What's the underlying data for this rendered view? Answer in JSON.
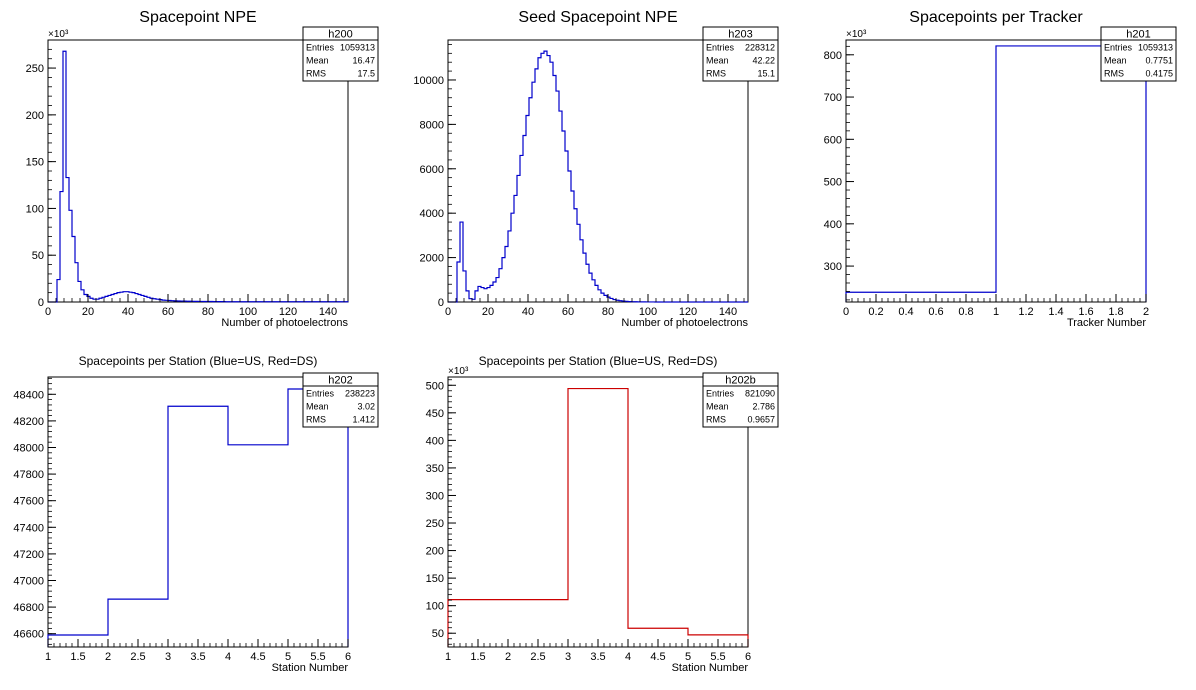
{
  "chart_data": [
    {
      "id": "h200",
      "type": "histogram",
      "title": "Spacepoint NPE",
      "xlabel": "Number of photoelectrons",
      "ylabel": "",
      "exponent_label": "×10³",
      "xlim": [
        0,
        150
      ],
      "ylim": [
        0,
        280
      ],
      "xticks": [
        0,
        20,
        40,
        60,
        80,
        100,
        120,
        140
      ],
      "xtick_labels": [
        "0",
        "20",
        "40",
        "60",
        "80",
        "100",
        "120",
        "140"
      ],
      "yticks": [
        0,
        50,
        100,
        150,
        200,
        250
      ],
      "ytick_labels": [
        "0",
        "50",
        "100",
        "150",
        "200",
        "250"
      ],
      "color": "#0000cc",
      "bins": {
        "x0": 0,
        "width": 1.5,
        "values": [
          0,
          0,
          0,
          24,
          118,
          268,
          133,
          98,
          70,
          42,
          22,
          13,
          8,
          6,
          4,
          3,
          3,
          4,
          5,
          6,
          7,
          8,
          9,
          10,
          10.5,
          11,
          11,
          10.5,
          10,
          9,
          8,
          7,
          6,
          5,
          4,
          3.5,
          3,
          2.5,
          2,
          1.8,
          1.6,
          1.4,
          1.2,
          1.1,
          1,
          0.9,
          0.8,
          0.8,
          0.7,
          0.7,
          0.6,
          0.6,
          0.5,
          0.5,
          0.5,
          0.4,
          0.4,
          0.4,
          0.4,
          0.3,
          0.3,
          0.3,
          0.3,
          0.3,
          0.3,
          0.3,
          0.3,
          0.3,
          0.3,
          0.3,
          0.3,
          0.3,
          0.3,
          0.3,
          0.3,
          0.3,
          0.3,
          0.3,
          0.3,
          0.3,
          0.3,
          0.3,
          0.3,
          0.3,
          0.3,
          0.3,
          0.3,
          0.3,
          0.3,
          0.3,
          0.3,
          0.3,
          0.3,
          0.3,
          0.3,
          0.3,
          0.3,
          0.3,
          0.3,
          0.3
        ]
      },
      "stats": {
        "name": "h200",
        "rows": [
          {
            "label": "Entries",
            "value": "1059313"
          },
          {
            "label": "Mean",
            "value": "16.47"
          },
          {
            "label": "RMS",
            "value": "17.5"
          }
        ]
      }
    },
    {
      "id": "h203",
      "type": "histogram",
      "title": "Seed Spacepoint NPE",
      "xlabel": "Number of photoelectrons",
      "ylabel": "",
      "exponent_label": "",
      "xlim": [
        0,
        150
      ],
      "ylim": [
        0,
        11800
      ],
      "xticks": [
        0,
        20,
        40,
        60,
        80,
        100,
        120,
        140
      ],
      "xtick_labels": [
        "0",
        "20",
        "40",
        "60",
        "80",
        "100",
        "120",
        "140"
      ],
      "yticks": [
        0,
        2000,
        4000,
        6000,
        8000,
        10000
      ],
      "ytick_labels": [
        "0",
        "2000",
        "4000",
        "6000",
        "8000",
        "10000"
      ],
      "color": "#0000cc",
      "bins": {
        "x0": 0,
        "width": 1.5,
        "values": [
          0,
          0,
          0,
          1800,
          3600,
          1400,
          500,
          150,
          120,
          500,
          700,
          650,
          600,
          650,
          750,
          900,
          1100,
          1500,
          2000,
          2500,
          3200,
          4000,
          4800,
          5700,
          6600,
          7500,
          8400,
          9200,
          9900,
          10500,
          11000,
          11200,
          11300,
          11100,
          10800,
          10200,
          9500,
          8600,
          7700,
          6800,
          5900,
          5000,
          4200,
          3500,
          2800,
          2200,
          1700,
          1300,
          1000,
          750,
          550,
          400,
          300,
          220,
          160,
          110,
          80,
          60,
          40,
          30,
          20,
          15,
          10,
          7,
          5,
          4,
          3,
          2,
          2,
          1,
          1,
          1,
          1,
          1,
          1,
          0,
          0,
          0,
          0,
          0,
          0,
          0,
          0,
          0,
          0,
          0,
          0,
          0,
          0,
          0,
          0,
          0,
          0,
          0,
          0,
          0,
          0,
          0,
          0,
          0
        ]
      },
      "stats": {
        "name": "h203",
        "rows": [
          {
            "label": "Entries",
            "value": "228312"
          },
          {
            "label": "Mean",
            "value": "42.22"
          },
          {
            "label": "RMS",
            "value": "15.1"
          }
        ]
      }
    },
    {
      "id": "h201",
      "type": "histogram",
      "title": "Spacepoints per Tracker",
      "xlabel": "Tracker Number",
      "ylabel": "",
      "exponent_label": "×10³",
      "xlim": [
        0,
        2
      ],
      "ylim": [
        215,
        835
      ],
      "xticks": [
        0,
        0.2,
        0.4,
        0.6,
        0.8,
        1,
        1.2,
        1.4,
        1.6,
        1.8,
        2
      ],
      "xtick_labels": [
        "0",
        "0.2",
        "0.4",
        "0.6",
        "0.8",
        "1",
        "1.2",
        "1.4",
        "1.6",
        "1.8",
        "2"
      ],
      "yticks": [
        300,
        400,
        500,
        600,
        700,
        800
      ],
      "ytick_labels": [
        "300",
        "400",
        "500",
        "600",
        "700",
        "800"
      ],
      "color": "#0000cc",
      "bins": {
        "x0": 0,
        "width": 1,
        "values": [
          238,
          821
        ]
      },
      "stats": {
        "name": "h201",
        "rows": [
          {
            "label": "Entries",
            "value": "1059313"
          },
          {
            "label": "Mean",
            "value": "0.7751"
          },
          {
            "label": "RMS",
            "value": "0.4175"
          }
        ]
      }
    },
    {
      "id": "h202",
      "type": "histogram",
      "title": "Spacepoints per Station (Blue=US, Red=DS)",
      "xlabel": "Station Number",
      "ylabel": "",
      "exponent_label": "",
      "xlim": [
        1,
        6
      ],
      "ylim": [
        46500,
        48530
      ],
      "xticks": [
        1,
        1.5,
        2,
        2.5,
        3,
        3.5,
        4,
        4.5,
        5,
        5.5,
        6
      ],
      "xtick_labels": [
        "1",
        "1.5",
        "2",
        "2.5",
        "3",
        "3.5",
        "4",
        "4.5",
        "5",
        "5.5",
        "6"
      ],
      "yticks": [
        46600,
        46800,
        47000,
        47200,
        47400,
        47600,
        47800,
        48000,
        48200,
        48400
      ],
      "ytick_labels": [
        "46600",
        "46800",
        "47000",
        "47200",
        "47400",
        "47600",
        "47800",
        "48000",
        "48200",
        "48400"
      ],
      "color": "#0000cc",
      "bins": {
        "x0": 1,
        "width": 1,
        "values": [
          46590,
          46860,
          48310,
          48020,
          48440
        ]
      },
      "stats": {
        "name": "h202",
        "rows": [
          {
            "label": "Entries",
            "value": "238223"
          },
          {
            "label": "Mean",
            "value": "3.02"
          },
          {
            "label": "RMS",
            "value": "1.412"
          }
        ]
      }
    },
    {
      "id": "h202b",
      "type": "histogram",
      "title": "Spacepoints per Station (Blue=US, Red=DS)",
      "xlabel": "Station Number",
      "ylabel": "",
      "exponent_label": "×10³",
      "xlim": [
        1,
        6
      ],
      "ylim": [
        25,
        515
      ],
      "xticks": [
        1,
        1.5,
        2,
        2.5,
        3,
        3.5,
        4,
        4.5,
        5,
        5.5,
        6
      ],
      "xtick_labels": [
        "1",
        "1.5",
        "2",
        "2.5",
        "3",
        "3.5",
        "4",
        "4.5",
        "5",
        "5.5",
        "6"
      ],
      "yticks": [
        50,
        100,
        150,
        200,
        250,
        300,
        350,
        400,
        450,
        500
      ],
      "ytick_labels": [
        "50",
        "100",
        "150",
        "200",
        "250",
        "300",
        "350",
        "400",
        "450",
        "500"
      ],
      "color": "#cc0000",
      "bins": {
        "x0": 1,
        "width": 1,
        "values": [
          111,
          111,
          494,
          59,
          47
        ]
      },
      "stats": {
        "name": "h202b",
        "rows": [
          {
            "label": "Entries",
            "value": "821090"
          },
          {
            "label": "Mean",
            "value": "2.786"
          },
          {
            "label": "RMS",
            "value": "0.9657"
          }
        ]
      }
    }
  ]
}
